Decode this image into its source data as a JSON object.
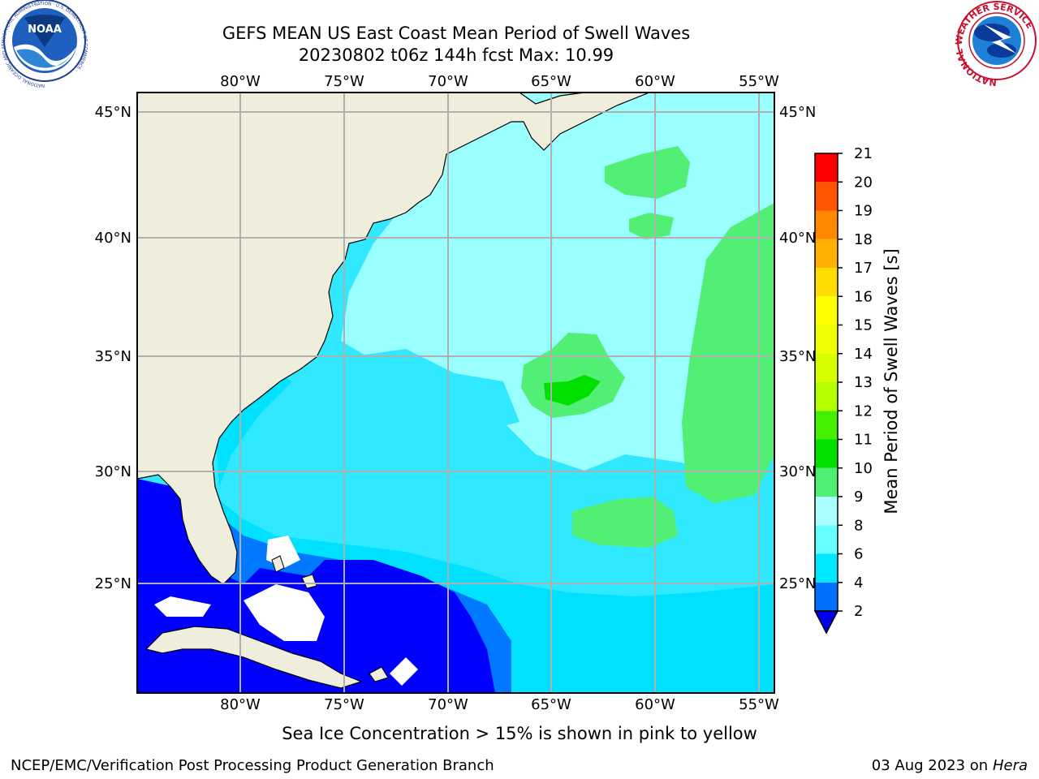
{
  "title": {
    "line1": "GEFS MEAN US East Coast Mean Period of Swell Waves",
    "line2": "20230802 t06z 144h fcst   Max: 10.99"
  },
  "map": {
    "lon_labels": [
      "80°W",
      "75°W",
      "70°W",
      "65°W",
      "60°W",
      "55°W"
    ],
    "lat_labels": [
      "45°N",
      "40°N",
      "35°N",
      "30°N",
      "25°N"
    ],
    "colors": {
      "land": "#efeedd",
      "ocean_2_4": "#0000ff",
      "ocean_4_6": "#00c8ff",
      "ocean_6_8": "#30e8ff",
      "ocean_8_9": "#99ffff",
      "ocean_9_10": "#52ef75",
      "ocean_10_11": "#00e000",
      "grid": "#b0b0b0"
    }
  },
  "colorbar": {
    "label": "Mean Period of Swell Waves [s]",
    "ticks": [
      "2",
      "4",
      "6",
      "8",
      "9",
      "10",
      "11",
      "12",
      "13",
      "14",
      "15",
      "16",
      "17",
      "18",
      "19",
      "20",
      "21"
    ],
    "colors": [
      "#0070ff",
      "#00e8ff",
      "#66ffff",
      "#aaffff",
      "#4fef73",
      "#00e000",
      "#44f000",
      "#b4ff00",
      "#d8ff00",
      "#eeff00",
      "#ffff00",
      "#ffdd00",
      "#ffb000",
      "#ff8800",
      "#ff5500",
      "#ff0000"
    ],
    "under_color": "#0000ee"
  },
  "note": "Sea Ice Concentration > 15% is shown in pink to yellow",
  "footer": {
    "left": "NCEP/EMC/Verification Post Processing Product Generation Branch",
    "date": "03 Aug 2023 on",
    "machine": "Hera"
  },
  "logos": {
    "noaa": "NOAA",
    "noaa_ring": "NATIONAL OCEANIC AND ATMOSPHERIC ADMINISTRATION · U.S. DEPARTMENT OF COMMERCE ·",
    "nws_ring": "NATIONAL WEATHER SERVICE"
  }
}
